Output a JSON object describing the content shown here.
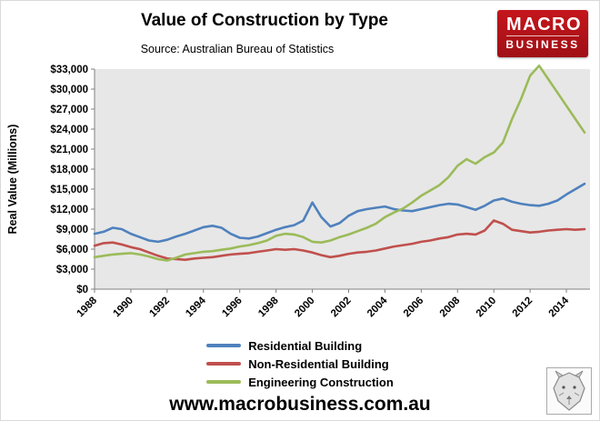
{
  "header": {
    "title": "Value of Construction by Type",
    "subtitle": "Source: Australian Bureau of Statistics"
  },
  "logo": {
    "line1": "MACRO",
    "line2": "BUSINESS",
    "color": "#c4161c"
  },
  "footer": {
    "website": "www.macrobusiness.com.au"
  },
  "chart_data": {
    "type": "line",
    "title": "Value of Construction by Type",
    "subtitle": "Source: Australian Bureau of Statistics",
    "ylabel": "Real Value (Millions)",
    "ylim": [
      0,
      33000
    ],
    "ytick_step": 3000,
    "ytick_labels": [
      "$0",
      "$3,000",
      "$6,000",
      "$9,000",
      "$12,000",
      "$15,000",
      "$18,000",
      "$21,000",
      "$24,000",
      "$27,000",
      "$30,000",
      "$33,000"
    ],
    "xticks": [
      1988,
      1990,
      1992,
      1994,
      1996,
      1998,
      2000,
      2002,
      2004,
      2006,
      2008,
      2010,
      2012,
      2014
    ],
    "plot_bg": "#e7e7e7",
    "legend_position": "bottom",
    "grid": false,
    "x": [
      1988,
      1988.5,
      1989,
      1989.5,
      1990,
      1990.5,
      1991,
      1991.5,
      1992,
      1992.5,
      1993,
      1993.5,
      1994,
      1994.5,
      1995,
      1995.5,
      1996,
      1996.5,
      1997,
      1997.5,
      1998,
      1998.5,
      1999,
      1999.5,
      2000,
      2000.5,
      2001,
      2001.5,
      2002,
      2002.5,
      2003,
      2003.5,
      2004,
      2004.5,
      2005,
      2005.5,
      2006,
      2006.5,
      2007,
      2007.5,
      2008,
      2008.5,
      2009,
      2009.5,
      2010,
      2010.5,
      2011,
      2011.5,
      2012,
      2012.5,
      2013,
      2013.5,
      2014,
      2014.5,
      2015
    ],
    "series": [
      {
        "name": "Residential Building",
        "color": "#4f81bd",
        "values": [
          8300,
          8600,
          9200,
          9000,
          8300,
          7800,
          7300,
          7100,
          7400,
          7900,
          8300,
          8800,
          9300,
          9500,
          9200,
          8300,
          7700,
          7600,
          7900,
          8400,
          8900,
          9300,
          9600,
          10300,
          13000,
          10800,
          9400,
          9900,
          11000,
          11700,
          12000,
          12200,
          12400,
          12000,
          11800,
          11700,
          12000,
          12300,
          12600,
          12800,
          12700,
          12300,
          11900,
          12500,
          13300,
          13600,
          13100,
          12800,
          12600,
          12500,
          12800,
          13300,
          14200,
          15000,
          15800
        ]
      },
      {
        "name": "Non-Residential Building",
        "color": "#c0504d",
        "values": [
          6500,
          6900,
          7000,
          6700,
          6300,
          6000,
          5500,
          5000,
          4600,
          4500,
          4400,
          4600,
          4700,
          4800,
          5000,
          5200,
          5300,
          5400,
          5600,
          5800,
          6000,
          5900,
          6000,
          5800,
          5500,
          5100,
          4800,
          5000,
          5300,
          5500,
          5600,
          5800,
          6100,
          6400,
          6600,
          6800,
          7100,
          7300,
          7600,
          7800,
          8200,
          8300,
          8200,
          8800,
          10300,
          9800,
          8900,
          8700,
          8500,
          8600,
          8800,
          8900,
          9000,
          8900,
          9000
        ]
      },
      {
        "name": "Engineering Construction",
        "color": "#9bbb59",
        "values": [
          4800,
          5000,
          5200,
          5300,
          5400,
          5200,
          4900,
          4500,
          4300,
          4700,
          5200,
          5400,
          5600,
          5700,
          5900,
          6100,
          6400,
          6600,
          6900,
          7300,
          8000,
          8300,
          8200,
          7800,
          7100,
          7000,
          7300,
          7800,
          8200,
          8700,
          9200,
          9800,
          10800,
          11500,
          12100,
          13000,
          14000,
          14800,
          15600,
          16800,
          18500,
          19500,
          18800,
          19800,
          20500,
          22000,
          25500,
          28500,
          32000,
          33500,
          31500,
          29500,
          27500,
          25500,
          23500
        ]
      }
    ]
  }
}
